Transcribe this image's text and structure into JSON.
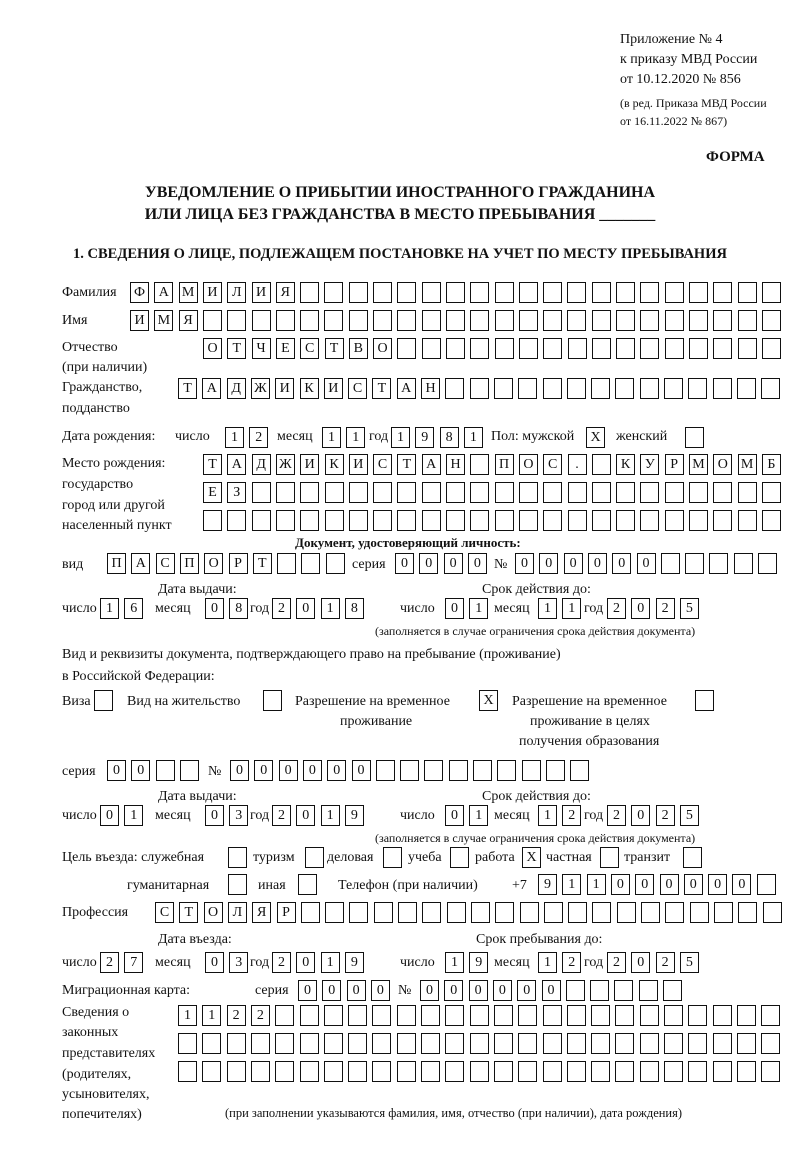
{
  "header": {
    "appendix": "Приложение № 4",
    "order": "к приказу МВД России",
    "order_date": "от 10.12.2020 № 856",
    "revision1": "(в ред. Приказа МВД России",
    "revision2": "от 16.11.2022 № 867)",
    "form_label": "ФОРМА",
    "title1": "УВЕДОМЛЕНИЕ О ПРИБЫТИИ ИНОСТРАННОГО ГРАЖДАНИНА",
    "title2": "ИЛИ ЛИЦА БЕЗ ГРАЖДАНСТВА В МЕСТО ПРЕБЫВАНИЯ _______",
    "section1": "1. СВЕДЕНИЯ О ЛИЦЕ, ПОДЛЕЖАЩЕМ ПОСТАНОВКЕ НА УЧЕТ ПО МЕСТУ ПРЕБЫВАНИЯ"
  },
  "labels": {
    "surname": "Фамилия",
    "name": "Имя",
    "patronymic": "Отчество",
    "patronymic2": "(при наличии)",
    "citizenship": "Гражданство,",
    "citizenship2": "подданство",
    "birth_date": "Дата рождения:",
    "day": "число",
    "month": "месяц",
    "year": "год",
    "sex_male": "Пол: мужской",
    "sex_female": "женский",
    "birthplace1": "Место рождения:",
    "birthplace2": "государство",
    "birthplace3": "город или другой",
    "birthplace4": "населенный пункт",
    "id_doc": "Документ, удостоверяющий личность:",
    "kind": "вид",
    "series": "серия",
    "number": "№",
    "issue_date": "Дата выдачи:",
    "valid_until": "Срок действия до:",
    "validity_note": "(заполняется в случае ограничения срока действия документа)",
    "permit_doc1": "Вид и реквизиты документа, подтверждающего право на пребывание (проживание)",
    "permit_doc2": "в Российской Федерации:",
    "visa": "Виза",
    "residence_permit": "Вид на жительство",
    "temp_residence1": "Разрешение на временное",
    "temp_residence2": "проживание",
    "temp_edu1": "Разрешение на временное",
    "temp_edu2": "проживание в целях",
    "temp_edu3": "получения образования",
    "purpose": "Цель въезда: служебная",
    "tourism": "туризм",
    "business": "деловая",
    "study": "учеба",
    "work": "работа",
    "private": "частная",
    "transit": "транзит",
    "humanitarian": "гуманитарная",
    "other": "иная",
    "phone": "Телефон (при наличии)",
    "phone_prefix": "+7",
    "profession": "Профессия",
    "entry_date": "Дата въезда:",
    "stay_until": "Срок пребывания до:",
    "migration_card": "Миграционная карта:",
    "reps1": "Сведения о",
    "reps2": "законных",
    "reps3": "представителях",
    "reps4": "(родителях,",
    "reps5": "усыновителях,",
    "reps6": "попечителях)",
    "reps_note": "(при заполнении указываются фамилия, имя, отчество (при наличии), дата рождения)"
  },
  "person": {
    "surname": "ФАМИЛИЯ",
    "name": "ИМЯ",
    "patronymic": "ОТЧЕСТВО",
    "citizenship": "ТАДЖИКИСТАН",
    "birth_day": "12",
    "birth_month": "11",
    "birth_year": "1981",
    "sex_male": "X",
    "sex_female": "",
    "birthplace_line1": "ТАДЖИКИСТАН ПОС. КУРМОМБ",
    "birthplace_line2": "ЕЗ",
    "birthplace_line3": "",
    "id_kind": "ПАСПОРТ",
    "id_series": "0000",
    "id_number": "000000",
    "id_issue_day": "16",
    "id_issue_month": "08",
    "id_issue_year": "2018",
    "id_valid_day": "01",
    "id_valid_month": "11",
    "id_valid_year": "2025",
    "permit_visa": "",
    "permit_residence": "",
    "permit_temp": "X",
    "permit_temp_edu": "",
    "permit_series": "00",
    "permit_number": "000000",
    "permit_issue_day": "01",
    "permit_issue_month": "03",
    "permit_issue_year": "2019",
    "permit_valid_day": "01",
    "permit_valid_month": "12",
    "permit_valid_year": "2025",
    "purpose_official": "",
    "purpose_tourism": "",
    "purpose_business": "",
    "purpose_study": "",
    "purpose_work": "X",
    "purpose_private": "",
    "purpose_transit": "",
    "purpose_humanitarian": "",
    "purpose_other": "",
    "phone": "911000000",
    "profession": "СТОЛЯР",
    "entry_day": "27",
    "entry_month": "03",
    "entry_year": "2019",
    "stay_day": "19",
    "stay_month": "12",
    "stay_year": "2025",
    "mig_series": "0000",
    "mig_number": "000000",
    "reps_line1": "1122",
    "reps_line2": "",
    "reps_line3": ""
  }
}
